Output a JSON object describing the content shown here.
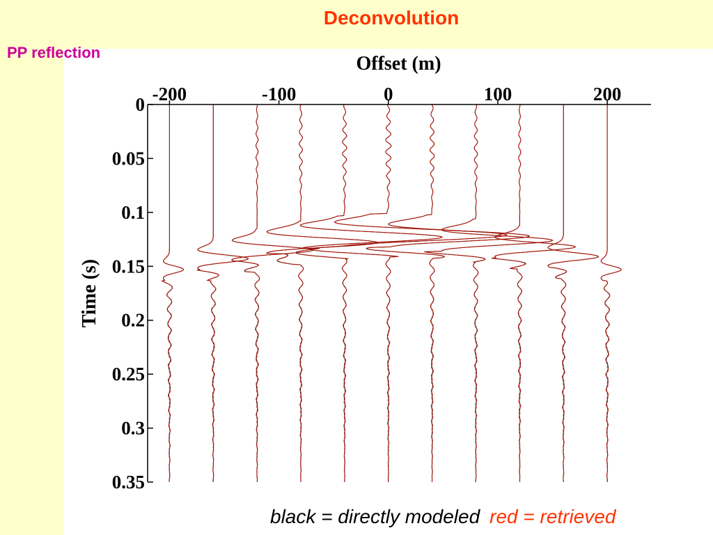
{
  "slide": {
    "title": "Deconvolution",
    "subtitle": "PP reflection",
    "caption_black": "black = directly modeled",
    "caption_red": "red = retrieved"
  },
  "colors": {
    "background": "#ffffcc",
    "plot_background": "#ffffff",
    "title": "#ff3300",
    "subtitle": "#cc0099",
    "modeled_trace": "#000000",
    "retrieved_trace": "#cc1100"
  },
  "chart_data": {
    "type": "line",
    "chart_style": "seismic wiggle-trace gather",
    "xlabel": "Offset (m)",
    "ylabel": "Time (s)",
    "x_axis_position": "top",
    "xlim": [
      -220,
      240
    ],
    "ylim": [
      0,
      0.35
    ],
    "y_inverted": true,
    "grid": false,
    "x_ticks": [
      -200,
      -100,
      0,
      100,
      200
    ],
    "x_tick_labels": [
      "-200",
      "-100",
      "0",
      "100",
      "200"
    ],
    "y_ticks": [
      0,
      0.05,
      0.1,
      0.15,
      0.2,
      0.25,
      0.3,
      0.35
    ],
    "y_tick_labels": [
      "0",
      "0.05",
      "0.1",
      "0.15",
      "0.2",
      "0.25",
      "0.3",
      "0.35"
    ],
    "trace_offsets": [
      -200,
      -160,
      -120,
      -80,
      -40,
      0,
      40,
      80,
      120,
      160,
      200
    ],
    "reflection_arrival_times": [
      0.153,
      0.143,
      0.135,
      0.128,
      0.123,
      0.121,
      0.122,
      0.126,
      0.132,
      0.141,
      0.153
    ],
    "series": [
      {
        "name": "directly modeled",
        "color": "#000000"
      },
      {
        "name": "retrieved",
        "color": "#cc1100"
      }
    ]
  }
}
